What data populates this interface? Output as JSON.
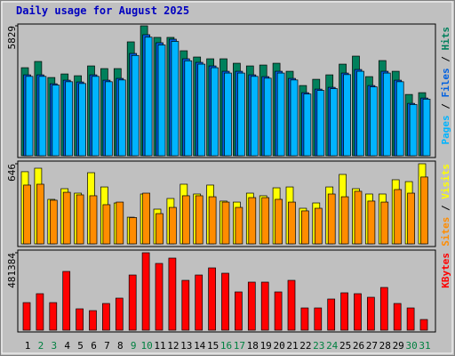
{
  "chart_data": {
    "type": "bar",
    "title": "Daily usage for August 2025",
    "categories": [
      "1",
      "2",
      "3",
      "4",
      "5",
      "6",
      "7",
      "8",
      "9",
      "10",
      "11",
      "12",
      "13",
      "14",
      "15",
      "16",
      "17",
      "18",
      "19",
      "20",
      "21",
      "22",
      "23",
      "24",
      "25",
      "26",
      "27",
      "28",
      "29",
      "30",
      "31"
    ],
    "category_colors": [
      "#000000",
      "#008040",
      "#008040",
      "#000000",
      "#000000",
      "#000000",
      "#000000",
      "#000000",
      "#008040",
      "#008040",
      "#000000",
      "#000000",
      "#000000",
      "#000000",
      "#000000",
      "#008040",
      "#008040",
      "#000000",
      "#000000",
      "#000000",
      "#000000",
      "#000000",
      "#008040",
      "#008040",
      "#000000",
      "#000000",
      "#000000",
      "#000000",
      "#000000",
      "#008040",
      "#008040"
    ],
    "legend_separator": " / ",
    "panels": [
      {
        "ylim": [
          0,
          5829
        ],
        "yticks": [
          5829
        ],
        "series": [
          {
            "name": "Hits",
            "color": "#00805c",
            "values": [
              3950,
              4230,
              3510,
              3670,
              3590,
              4030,
              3910,
              3910,
              5110,
              5829,
              5310,
              5310,
              4710,
              4430,
              4350,
              4350,
              4150,
              4030,
              4070,
              4150,
              3790,
              3150,
              3430,
              3630,
              4110,
              4470,
              3550,
              4270,
              3790,
              2750,
              2830
            ]
          },
          {
            "name": "Files",
            "color": "#0060e0",
            "values": [
              3630,
              3630,
              3230,
              3390,
              3310,
              3630,
              3390,
              3470,
              4590,
              5430,
              5070,
              5230,
              4350,
              4190,
              4030,
              3790,
              3790,
              3630,
              3550,
              3790,
              3470,
              2830,
              2990,
              3070,
              3710,
              3870,
              3150,
              3790,
              3390,
              2350,
              2590
            ]
          },
          {
            "name": "Pages",
            "color": "#00b4ff",
            "values": [
              3560,
              3560,
              3170,
              3320,
              3240,
              3560,
              3320,
              3400,
              4500,
              5320,
              4970,
              5130,
              4260,
              4110,
              3950,
              3710,
              3710,
              3560,
              3480,
              3710,
              3400,
              2770,
              2930,
              3010,
              3640,
              3790,
              3090,
              3710,
              3320,
              2300,
              2540
            ]
          }
        ]
      },
      {
        "ylim": [
          0,
          646
        ],
        "yticks": [
          646
        ],
        "series": [
          {
            "name": "Visits",
            "color": "#ffff00",
            "values": [
              582,
              610,
              359,
              445,
              409,
              574,
              459,
              330,
              215,
              402,
              280,
              366,
              481,
              402,
              474,
              345,
              337,
              409,
              388,
              452,
              459,
              287,
              330,
              459,
              560,
              445,
              402,
              402,
              517,
              502,
              646
            ]
          },
          {
            "name": "Sites",
            "color": "#ff8c00",
            "values": [
              474,
              481,
              352,
              416,
              395,
              388,
              316,
              337,
              212,
              409,
              244,
              294,
              388,
              388,
              380,
              337,
              294,
              373,
              373,
              359,
              337,
              266,
              287,
              402,
              380,
              424,
              345,
              337,
              438,
              409,
              539
            ]
          }
        ]
      },
      {
        "ylim": [
          0,
          481384
        ],
        "yticks": [
          481384
        ],
        "series": [
          {
            "name": "KBytes",
            "color": "#ff0000",
            "values": [
              171500,
              226900,
              171500,
              365200,
              132800,
              121700,
              166000,
              199200,
              343000,
              481384,
              415000,
              448200,
              309800,
              343000,
              387300,
              354100,
              237900,
              298800,
              298800,
              237900,
              309800,
              138300,
              138300,
              193700,
              232400,
              226900,
              204700,
              265600,
              166000,
              138300,
              66400
            ]
          }
        ]
      }
    ]
  }
}
